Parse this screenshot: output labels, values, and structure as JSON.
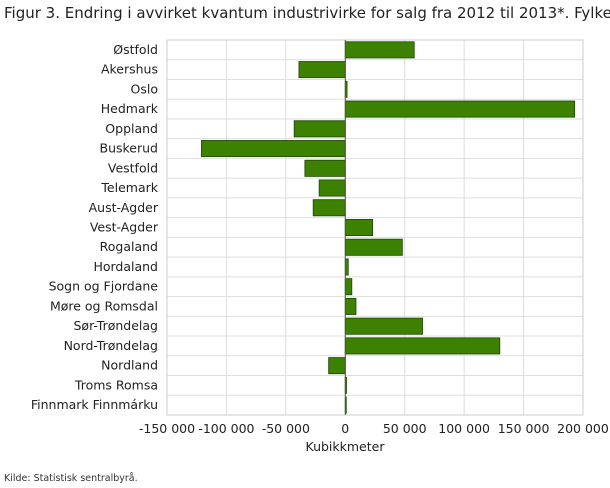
{
  "title": "Figur 3. Endring i avvirket kvantum industrivirke for salg fra 2012 til 2013*. Fylke",
  "source": "Kilde: Statistisk sentralbyrå.",
  "colors": {
    "bar": "#3c8200",
    "bar_stroke": "#1e4600",
    "grid": "#dddddd",
    "frame": "#cccccc"
  },
  "chart_data": {
    "type": "bar",
    "orientation": "horizontal",
    "categories": [
      "Østfold",
      "Akershus",
      "Oslo",
      "Hedmark",
      "Oppland",
      "Buskerud",
      "Vestfold",
      "Telemark",
      "Aust-Agder",
      "Vest-Agder",
      "Rogaland",
      "Hordaland",
      "Sogn og Fjordane",
      "Møre og Romsdal",
      "Sør-Trøndelag",
      "Nord-Trøndelag",
      "Nordland",
      "Troms Romsa",
      "Finnmark Finnmárku"
    ],
    "values": [
      58000,
      -39000,
      1500,
      193000,
      -43000,
      -121000,
      -34000,
      -22000,
      -27000,
      23000,
      48000,
      2500,
      5500,
      9000,
      65000,
      130000,
      -14000,
      1000,
      500
    ],
    "xlabel": "Kubikkmeter",
    "ylabel": "",
    "xlim": [
      -150000,
      200000
    ],
    "xticks": [
      -150000,
      -100000,
      -50000,
      0,
      50000,
      100000,
      150000,
      200000
    ],
    "xtick_labels": [
      "-150 000",
      "-100 000",
      "-50 000",
      "0",
      "50 000",
      "100 000",
      "150 000",
      "200 000"
    ],
    "grid": true,
    "legend": "none"
  }
}
